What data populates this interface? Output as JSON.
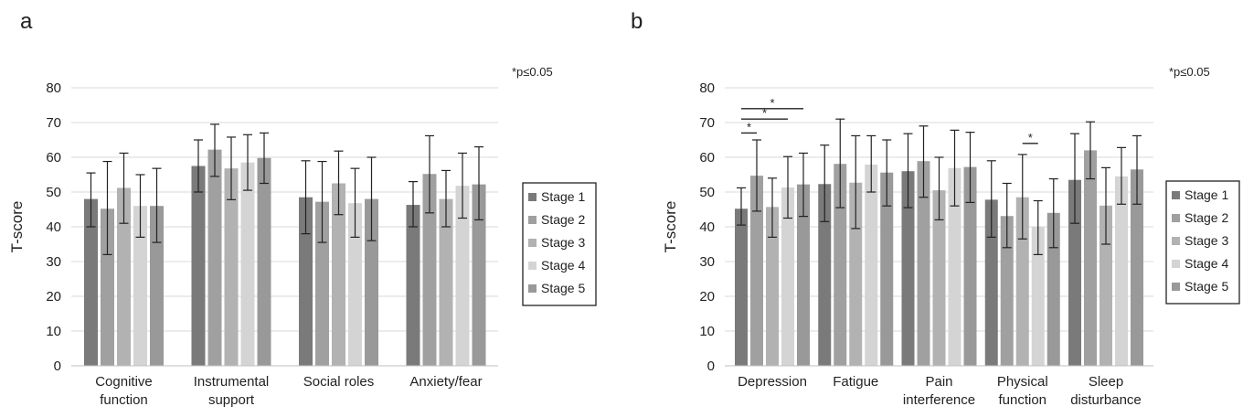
{
  "panels": [
    {
      "letter": "a",
      "note": "*p≤0.05",
      "legend_placement": "right"
    },
    {
      "letter": "b",
      "note": "*p≤0.05",
      "legend_placement": "right"
    }
  ],
  "chart_data": [
    {
      "type": "bar",
      "ylabel": "T-score",
      "ylim": [
        0,
        80
      ],
      "yticks": [
        0,
        10,
        20,
        30,
        40,
        50,
        60,
        70,
        80
      ],
      "grid": true,
      "categories": [
        [
          "Cognitive",
          "function"
        ],
        [
          "Instrumental",
          "support"
        ],
        [
          "Social roles"
        ],
        [
          "Anxiety/fear"
        ]
      ],
      "series": [
        {
          "name": "Stage 1",
          "color": "#7a7a7a",
          "values": [
            48,
            57.5,
            48.5,
            46.3
          ],
          "err_low": [
            40,
            50,
            38,
            40
          ],
          "err_high": [
            55.5,
            65,
            59,
            53
          ]
        },
        {
          "name": "Stage 2",
          "color": "#a0a0a0",
          "values": [
            45.2,
            62.2,
            47.2,
            55.2
          ],
          "err_low": [
            32,
            54.5,
            35.5,
            44
          ],
          "err_high": [
            58.8,
            69.5,
            58.8,
            66.2
          ]
        },
        {
          "name": "Stage 3",
          "color": "#b2b2b2",
          "values": [
            51.2,
            56.8,
            52.5,
            48
          ],
          "err_low": [
            41,
            47.8,
            43.5,
            40
          ],
          "err_high": [
            61.2,
            65.8,
            61.8,
            56.2
          ]
        },
        {
          "name": "Stage 4",
          "color": "#d4d4d4",
          "values": [
            46,
            58.5,
            46.8,
            51.8
          ],
          "err_low": [
            37,
            50.5,
            37,
            42.5
          ],
          "err_high": [
            55,
            66.5,
            56.8,
            61.2
          ]
        },
        {
          "name": "Stage 5",
          "color": "#999999",
          "values": [
            46,
            59.8,
            48,
            52.2
          ],
          "err_low": [
            35.5,
            52.5,
            36,
            42
          ],
          "err_high": [
            56.8,
            67,
            60,
            63
          ]
        }
      ]
    },
    {
      "type": "bar",
      "ylabel": "T-score",
      "ylim": [
        0,
        80
      ],
      "yticks": [
        0,
        10,
        20,
        30,
        40,
        50,
        60,
        70,
        80
      ],
      "grid": true,
      "categories": [
        [
          "Depression"
        ],
        [
          "Fatigue"
        ],
        [
          "Pain",
          "interference"
        ],
        [
          "Physical",
          "function"
        ],
        [
          "Sleep",
          "disturbance"
        ]
      ],
      "series": [
        {
          "name": "Stage 1",
          "color": "#7a7a7a",
          "values": [
            45.2,
            52.3,
            56,
            47.8,
            53.5
          ],
          "err_low": [
            40.5,
            41.5,
            45.5,
            37,
            41
          ],
          "err_high": [
            51.2,
            63.5,
            66.8,
            59,
            66.8
          ]
        },
        {
          "name": "Stage 2",
          "color": "#a0a0a0",
          "values": [
            54.7,
            58.1,
            58.9,
            43.1,
            62
          ],
          "err_low": [
            44.5,
            45.5,
            48.5,
            34,
            53.8
          ],
          "err_high": [
            65,
            71,
            69,
            52.5,
            70.2
          ]
        },
        {
          "name": "Stage 3",
          "color": "#b2b2b2",
          "values": [
            45.7,
            52.7,
            50.5,
            48.5,
            46.1
          ],
          "err_low": [
            37,
            39.5,
            42,
            36.5,
            35
          ],
          "err_high": [
            54,
            66.2,
            60,
            60.8,
            57
          ]
        },
        {
          "name": "Stage 4",
          "color": "#d4d4d4",
          "values": [
            51.3,
            57.9,
            56.9,
            40,
            54.5
          ],
          "err_low": [
            42.5,
            50,
            46,
            32,
            46.5
          ],
          "err_high": [
            60.2,
            66.2,
            67.8,
            47.5,
            62.8
          ]
        },
        {
          "name": "Stage 5",
          "color": "#999999",
          "values": [
            52.2,
            55.6,
            57.2,
            44,
            56.5
          ],
          "err_low": [
            43,
            46,
            47,
            34,
            46.5
          ],
          "err_high": [
            61.2,
            65,
            67.2,
            53.8,
            66.2
          ]
        }
      ],
      "significance_brackets": [
        {
          "category": "Depression",
          "from_series": "Stage 1",
          "to_series": "Stage 2",
          "level": 67,
          "label": "*"
        },
        {
          "category": "Depression",
          "from_series": "Stage 1",
          "to_series": "Stage 4",
          "level": 71,
          "label": "*"
        },
        {
          "category": "Depression",
          "from_series": "Stage 1",
          "to_series": "Stage 5",
          "level": 74,
          "label": "*"
        },
        {
          "category": "Physical function",
          "from_series": "Stage 3",
          "to_series": "Stage 4",
          "level": 64,
          "label": "*"
        }
      ]
    }
  ]
}
